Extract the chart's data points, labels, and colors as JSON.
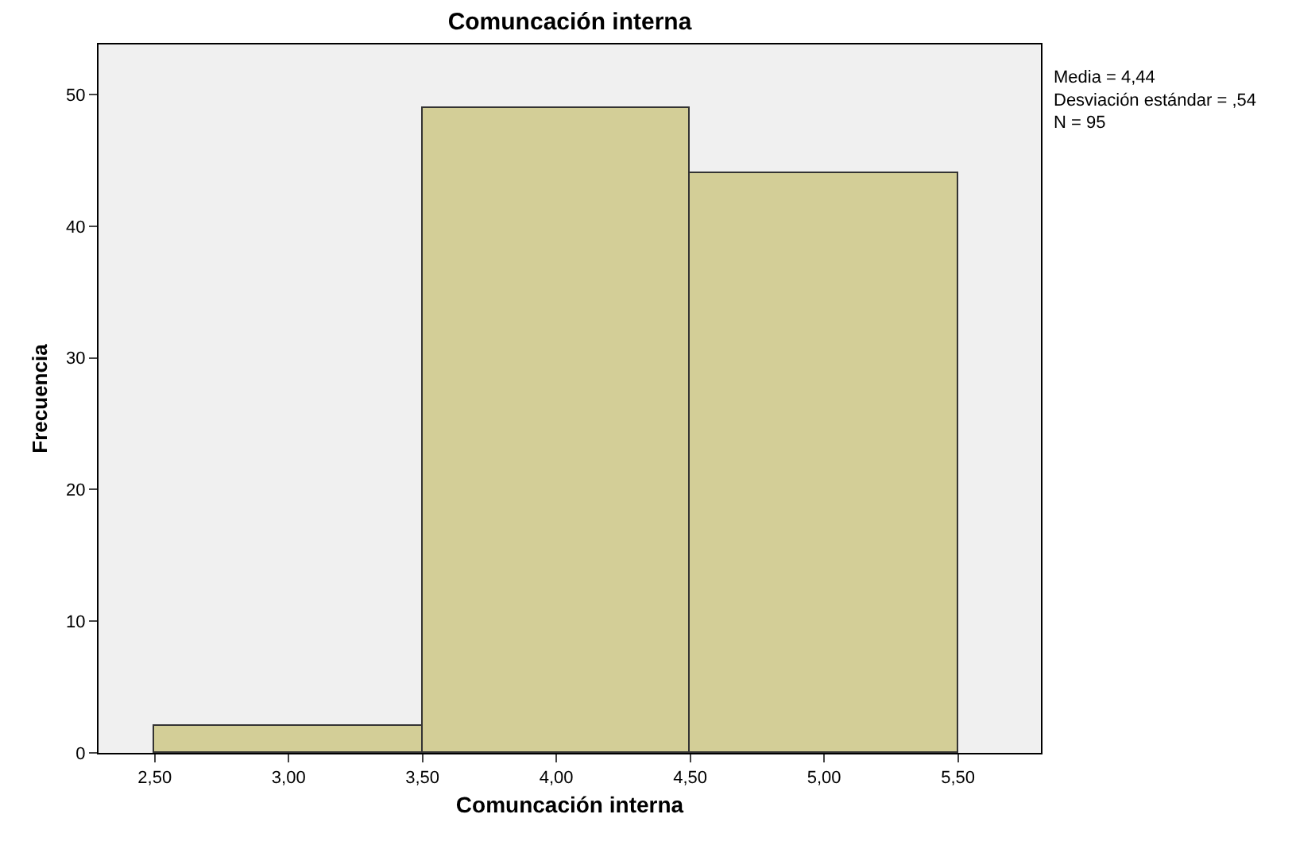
{
  "chart_data": {
    "type": "histogram",
    "title": "Comuncación interna",
    "xlabel": "Comuncación interna",
    "ylabel": "Frecuencia",
    "bins": [
      2.5,
      3.5,
      4.5,
      5.5
    ],
    "values": [
      2,
      49,
      44
    ],
    "color": "#d3ce97",
    "xlim": [
      2.29,
      5.81
    ],
    "xticks": [
      {
        "value": 2.5,
        "label": "2,50"
      },
      {
        "value": 3.0,
        "label": "3,00"
      },
      {
        "value": 3.5,
        "label": "3,50"
      },
      {
        "value": 4.0,
        "label": "4,00"
      },
      {
        "value": 4.5,
        "label": "4,50"
      },
      {
        "value": 5.0,
        "label": "5,00"
      },
      {
        "value": 5.5,
        "label": "5,50"
      }
    ],
    "ylim": [
      0,
      53.8
    ],
    "yticks": [
      0,
      10,
      20,
      30,
      40,
      50
    ],
    "annotations": [
      "Media = 4,44",
      "Desviación estándar = ,54",
      "N = 95"
    ]
  }
}
